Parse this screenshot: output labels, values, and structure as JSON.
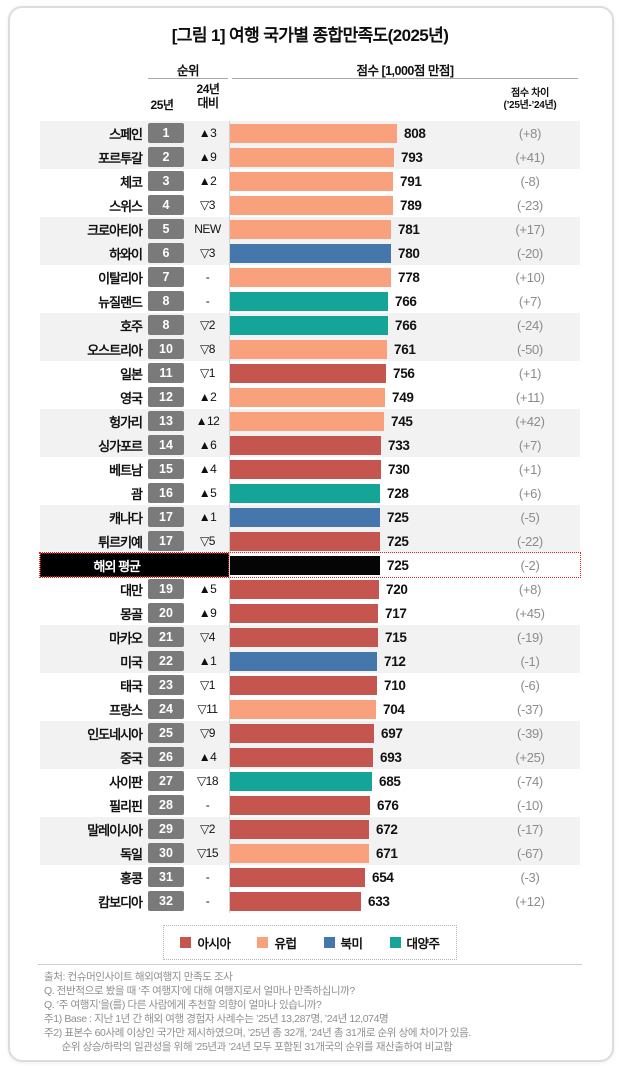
{
  "title": "[그림 1] 여행 국가별 종합만족도(2025년)",
  "header": {
    "rank_group": "순위",
    "score_group": "점수 [1,000점 만점]",
    "col_2025": "25년",
    "col_vs_line1": "24년",
    "col_vs_line2": "대비",
    "diff_line1": "점수 차이",
    "diff_line2": "(’25년-’24년)"
  },
  "chart_data": {
    "type": "bar",
    "title": "[그림 1] 여행 국가별 종합만족도(2025년)",
    "value_axis_label": "점수 [1,000점 만점]",
    "value_max": 1000,
    "region_colors": {
      "asia": "#C5554F",
      "europe": "#F8A17C",
      "northamerica": "#4577AD",
      "oceania": "#14A598",
      "average": "#050505"
    },
    "legend": [
      {
        "label": "아시아",
        "region": "asia"
      },
      {
        "label": "유럽",
        "region": "europe"
      },
      {
        "label": "북미",
        "region": "northamerica"
      },
      {
        "label": "대양주",
        "region": "oceania"
      }
    ],
    "rows": [
      {
        "country": "스페인",
        "rank": "1",
        "change": "▲3",
        "score": 808,
        "diff": "(+8)",
        "region": "europe"
      },
      {
        "country": "포르투갈",
        "rank": "2",
        "change": "▲9",
        "score": 793,
        "diff": "(+41)",
        "region": "europe"
      },
      {
        "country": "체코",
        "rank": "3",
        "change": "▲2",
        "score": 791,
        "diff": "(-8)",
        "region": "europe"
      },
      {
        "country": "스위스",
        "rank": "4",
        "change": "▽3",
        "score": 789,
        "diff": "(-23)",
        "region": "europe"
      },
      {
        "country": "크로아티아",
        "rank": "5",
        "change": "NEW",
        "score": 781,
        "diff": "(+17)",
        "region": "europe"
      },
      {
        "country": "하와이",
        "rank": "6",
        "change": "▽3",
        "score": 780,
        "diff": "(-20)",
        "region": "northamerica"
      },
      {
        "country": "이탈리아",
        "rank": "7",
        "change": "-",
        "score": 778,
        "diff": "(+10)",
        "region": "europe"
      },
      {
        "country": "뉴질랜드",
        "rank": "8",
        "change": "-",
        "score": 766,
        "diff": "(+7)",
        "region": "oceania"
      },
      {
        "country": "호주",
        "rank": "8",
        "change": "▽2",
        "score": 766,
        "diff": "(-24)",
        "region": "oceania"
      },
      {
        "country": "오스트리아",
        "rank": "10",
        "change": "▽8",
        "score": 761,
        "diff": "(-50)",
        "region": "europe"
      },
      {
        "country": "일본",
        "rank": "11",
        "change": "▽1",
        "score": 756,
        "diff": "(+1)",
        "region": "asia"
      },
      {
        "country": "영국",
        "rank": "12",
        "change": "▲2",
        "score": 749,
        "diff": "(+11)",
        "region": "europe"
      },
      {
        "country": "헝가리",
        "rank": "13",
        "change": "▲12",
        "score": 745,
        "diff": "(+42)",
        "region": "europe"
      },
      {
        "country": "싱가포르",
        "rank": "14",
        "change": "▲6",
        "score": 733,
        "diff": "(+7)",
        "region": "asia"
      },
      {
        "country": "베트남",
        "rank": "15",
        "change": "▲4",
        "score": 730,
        "diff": "(+1)",
        "region": "asia"
      },
      {
        "country": "괌",
        "rank": "16",
        "change": "▲5",
        "score": 728,
        "diff": "(+6)",
        "region": "oceania"
      },
      {
        "country": "캐나다",
        "rank": "17",
        "change": "▲1",
        "score": 725,
        "diff": "(-5)",
        "region": "northamerica"
      },
      {
        "country": "튀르키예",
        "rank": "17",
        "change": "▽5",
        "score": 725,
        "diff": "(-22)",
        "region": "asia"
      },
      {
        "country": "해외 평균",
        "rank": "",
        "change": "",
        "score": 725,
        "diff": "(-2)",
        "region": "average",
        "is_average": true
      },
      {
        "country": "대만",
        "rank": "19",
        "change": "▲5",
        "score": 720,
        "diff": "(+8)",
        "region": "asia"
      },
      {
        "country": "몽골",
        "rank": "20",
        "change": "▲9",
        "score": 717,
        "diff": "(+45)",
        "region": "asia"
      },
      {
        "country": "마카오",
        "rank": "21",
        "change": "▽4",
        "score": 715,
        "diff": "(-19)",
        "region": "asia"
      },
      {
        "country": "미국",
        "rank": "22",
        "change": "▲1",
        "score": 712,
        "diff": "(-1)",
        "region": "northamerica"
      },
      {
        "country": "태국",
        "rank": "23",
        "change": "▽1",
        "score": 710,
        "diff": "(-6)",
        "region": "asia"
      },
      {
        "country": "프랑스",
        "rank": "24",
        "change": "▽11",
        "score": 704,
        "diff": "(-37)",
        "region": "europe"
      },
      {
        "country": "인도네시아",
        "rank": "25",
        "change": "▽9",
        "score": 697,
        "diff": "(-39)",
        "region": "asia"
      },
      {
        "country": "중국",
        "rank": "26",
        "change": "▲4",
        "score": 693,
        "diff": "(+25)",
        "region": "asia"
      },
      {
        "country": "사이판",
        "rank": "27",
        "change": "▽18",
        "score": 685,
        "diff": "(-74)",
        "region": "oceania"
      },
      {
        "country": "필리핀",
        "rank": "28",
        "change": "-",
        "score": 676,
        "diff": "(-10)",
        "region": "asia"
      },
      {
        "country": "말레이시아",
        "rank": "29",
        "change": "▽2",
        "score": 672,
        "diff": "(-17)",
        "region": "asia"
      },
      {
        "country": "독일",
        "rank": "30",
        "change": "▽15",
        "score": 671,
        "diff": "(-67)",
        "region": "europe"
      },
      {
        "country": "홍콩",
        "rank": "31",
        "change": "-",
        "score": 654,
        "diff": "(-3)",
        "region": "asia"
      },
      {
        "country": "캄보디아",
        "rank": "32",
        "change": "-",
        "score": 633,
        "diff": "(+12)",
        "region": "asia"
      }
    ]
  },
  "footer": {
    "lines": [
      "출처: 컨슈머인사이트 해외여행지 만족도 조사",
      "Q. 전반적으로 봤을 때 ‘주 여행지’에 대해 여행지로서 얼마나 만족하십니까?",
      "Q. ‘주 여행지’을(를) 다른 사람에게 추천할 의향이 얼마나 있습니까?",
      "주1) Base : 지난 1년 간 해외 여행 경험자 사례수는 ’25년 13,287명, ’24년 12,074명",
      "주2) 표본수 60사례 이상인 국가만 제시하였으며, ’25년 총 32개, ’24년 총 31개로 순위 상에 차이가 있음.",
      "       순위 상승/하락의 일관성을 위해 ’25년과 ’24년 모두 포함된 31개국의 순위를 재산출하여 비교함"
    ]
  }
}
